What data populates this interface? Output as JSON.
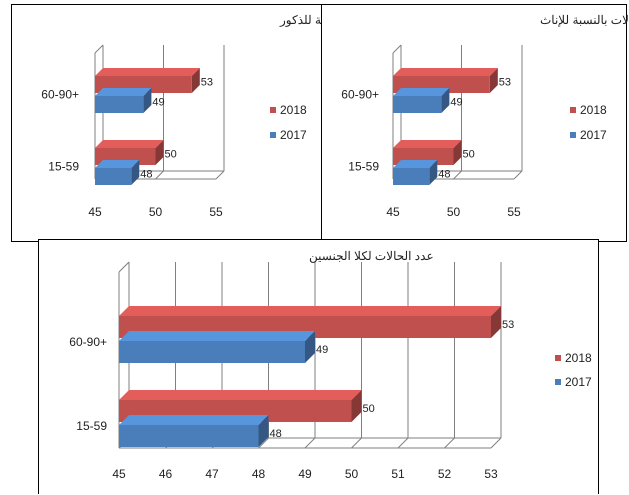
{
  "chart_data": [
    {
      "type": "bar",
      "orientation": "horizontal",
      "title": "عدد الحالات بالنسبة للذكور",
      "categories": [
        "15-59",
        "60-90+"
      ],
      "series": [
        {
          "name": "2017",
          "values": [
            48,
            49
          ],
          "color": "#4a7ebb"
        },
        {
          "name": "2018",
          "values": [
            50,
            53
          ],
          "color": "#c0504d"
        }
      ],
      "xlim": [
        45,
        55
      ],
      "xticks": [
        "45",
        "50",
        "55"
      ],
      "grid": true,
      "legend": "right",
      "style": "3d"
    },
    {
      "type": "bar",
      "orientation": "horizontal",
      "title": "عدد الحالات بالنسبة للإناث",
      "categories": [
        "15-59",
        "60-90+"
      ],
      "series": [
        {
          "name": "2017",
          "values": [
            48,
            49
          ],
          "color": "#4a7ebb"
        },
        {
          "name": "2018",
          "values": [
            50,
            53
          ],
          "color": "#c0504d"
        }
      ],
      "xlim": [
        45,
        55
      ],
      "xticks": [
        "45",
        "50",
        "55"
      ],
      "grid": true,
      "legend": "right",
      "style": "3d"
    },
    {
      "type": "bar",
      "orientation": "horizontal",
      "title": "عدد الحالات لكلا الجنسين",
      "categories": [
        "15-59",
        "60-90+"
      ],
      "series": [
        {
          "name": "2017",
          "values": [
            48,
            49
          ],
          "color": "#4a7ebb"
        },
        {
          "name": "2018",
          "values": [
            50,
            53
          ],
          "color": "#c0504d"
        }
      ],
      "xlim": [
        45,
        53
      ],
      "xticks": [
        "45",
        "46",
        "47",
        "48",
        "49",
        "50",
        "51",
        "52",
        "53"
      ],
      "grid": true,
      "legend": "right",
      "style": "3d"
    }
  ]
}
